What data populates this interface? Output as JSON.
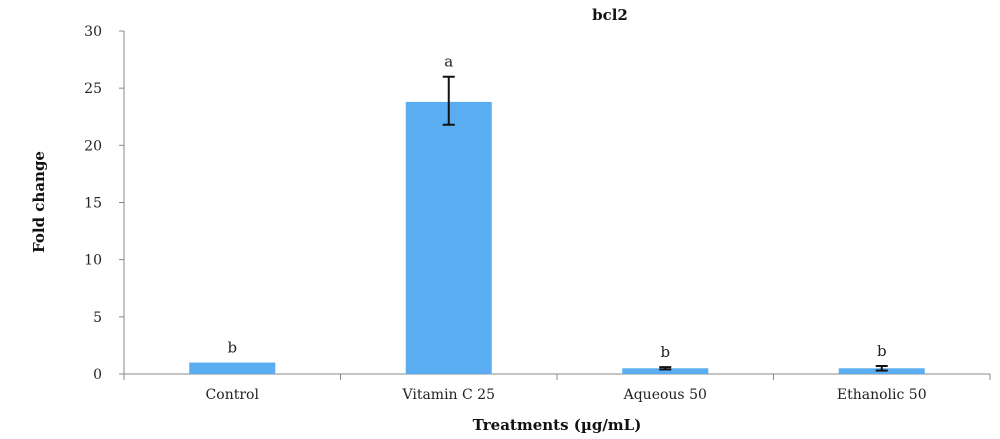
{
  "chart_data": {
    "type": "bar",
    "title": "bcl2",
    "xlabel": "Treatments (µg/mL)",
    "ylabel": "Fold change",
    "categories": [
      "Control",
      "Vitamin C 25",
      "Aqueous 50",
      "Ethanolic 50"
    ],
    "values": [
      1.0,
      23.8,
      0.5,
      0.5
    ],
    "error_low": [
      null,
      21.8,
      0.4,
      0.3
    ],
    "error_high": [
      null,
      26.0,
      0.6,
      0.7
    ],
    "significance_labels": [
      "b",
      "a",
      "b",
      "b"
    ],
    "ylim": [
      0,
      30
    ],
    "yticks": [
      0,
      5,
      10,
      15,
      20,
      25,
      30
    ],
    "grid": false,
    "legend": "none",
    "bar_color": "#5aadf0",
    "error_bar_color": "#111111"
  }
}
